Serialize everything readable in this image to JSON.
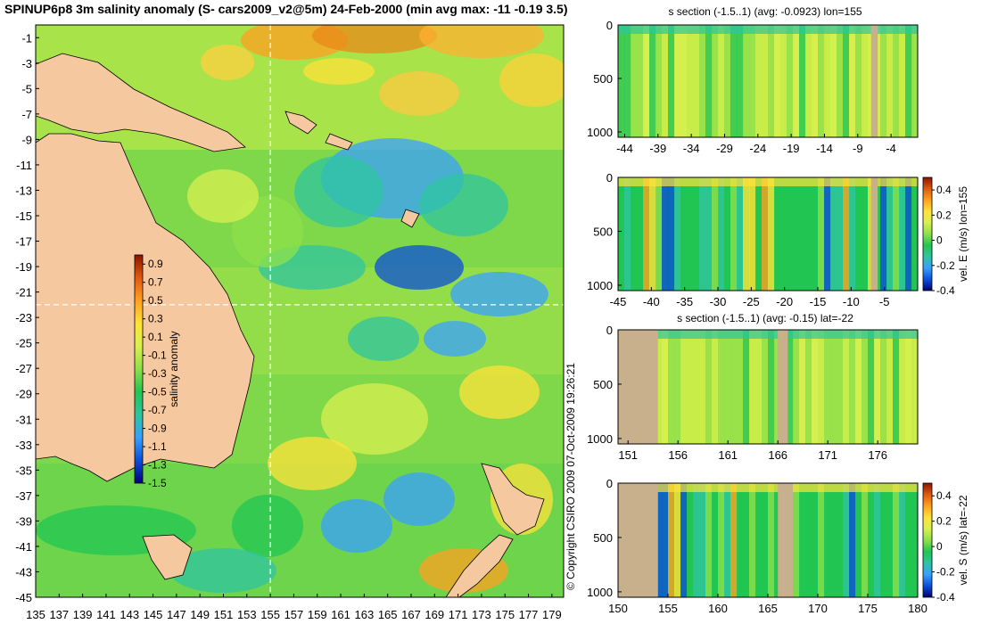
{
  "map": {
    "title": "SPINUP6p8 3m salinity anomaly (S- cars2009_v2@5m) 24-Feb-2000 (min avg max: -11 -0.19 3.5)",
    "copyright": "© Copyright CSIRO 2009   07-Oct-2009 19:26:21",
    "colorbar_label": "salinity anomaly",
    "colors": {
      "land": "#f6c89f",
      "coast": "#000000",
      "section_line": "#ffffff"
    }
  },
  "colors": {
    "scale": [
      "#00007a",
      "#0b4fd8",
      "#38a0ff",
      "#2fc4a0",
      "#22c552",
      "#8de04a",
      "#d8f050",
      "#ffe23a",
      "#ffa020",
      "#e05a10",
      "#8a1500"
    ],
    "bathymetry_mask": "#c8b08c",
    "ocean_base": "#7fd84a",
    "frame": "#000000"
  },
  "chart_data": [
    {
      "type": "heatmap",
      "name": "salinity_anomaly_map",
      "title": "SPINUP6p8 3m salinity anomaly (S- cars2009_v2@5m) 24-Feb-2000 (min avg max: -11 -0.19 3.5)",
      "xlim": [
        135,
        180
      ],
      "ylim": [
        -45,
        0
      ],
      "xticks": [
        "135",
        "137",
        "139",
        "141",
        "143",
        "145",
        "147",
        "149",
        "151",
        "153",
        "155",
        "157",
        "159",
        "161",
        "163",
        "165",
        "167",
        "169",
        "171",
        "173",
        "175",
        "177",
        "179"
      ],
      "yticks": [
        "-1",
        "-3",
        "-5",
        "-7",
        "-9",
        "-11",
        "-13",
        "-15",
        "-17",
        "-19",
        "-21",
        "-23",
        "-25",
        "-27",
        "-29",
        "-31",
        "-33",
        "-35",
        "-37",
        "-39",
        "-41",
        "-43",
        "-45"
      ],
      "section_lines": {
        "lon": 155,
        "lat": -22
      },
      "colorbar": {
        "label": "salinity anomaly",
        "range": [
          -1.5,
          1.0
        ],
        "ticks": [
          "0.9",
          "0.7",
          "0.5",
          "0.3",
          "0.1",
          "-0.1",
          "-0.3",
          "-0.5",
          "-0.7",
          "-0.9",
          "-1.1",
          "-1.3",
          "-1.5"
        ]
      },
      "grid": false
    },
    {
      "type": "heatmap",
      "name": "salinity_section_lon155",
      "title": "s section (-1.5..1) (avg: -0.0923) lon=155",
      "xlim": [
        -45,
        0
      ],
      "ylim": [
        1050,
        0
      ],
      "xticks": [
        "-44",
        "-39",
        "-34",
        "-29",
        "-24",
        "-19",
        "-14",
        "-9",
        "-4"
      ],
      "yticks": [
        "0",
        "500",
        "1000"
      ],
      "colorbar": null
    },
    {
      "type": "heatmap",
      "name": "velocity_east_section_lon155",
      "title": "",
      "xlim": [
        -45,
        0
      ],
      "ylim": [
        1050,
        0
      ],
      "xticks": [
        "-45",
        "-40",
        "-35",
        "-30",
        "-25",
        "-20",
        "-15",
        "-10",
        "-5"
      ],
      "yticks": [
        "0",
        "500",
        "1000"
      ],
      "colorbar": {
        "label": "vel. E (m/s) lon=155",
        "range": [
          -0.4,
          0.5
        ],
        "ticks": [
          "0.4",
          "0.2",
          "0",
          "-0.2",
          "-0.4"
        ]
      }
    },
    {
      "type": "heatmap",
      "name": "salinity_section_lat-22",
      "title": "s section (-1.5..1) (avg: -0.15) lat=-22",
      "xlim": [
        150,
        180
      ],
      "ylim": [
        1050,
        0
      ],
      "xticks": [
        "151",
        "156",
        "161",
        "166",
        "171",
        "176"
      ],
      "yticks": [
        "0",
        "500",
        "1000"
      ],
      "colorbar": null
    },
    {
      "type": "heatmap",
      "name": "velocity_south_section_lat-22",
      "title": "",
      "xlim": [
        150,
        180
      ],
      "ylim": [
        1050,
        0
      ],
      "xticks": [
        "150",
        "155",
        "160",
        "165",
        "170",
        "175",
        "180"
      ],
      "yticks": [
        "0",
        "500",
        "1000"
      ],
      "colorbar": {
        "label": "vel. S (m/s) lat=-22",
        "range": [
          -0.4,
          0.5
        ],
        "ticks": [
          "0.4",
          "0.2",
          "0",
          "-0.2",
          "-0.4"
        ]
      }
    }
  ]
}
